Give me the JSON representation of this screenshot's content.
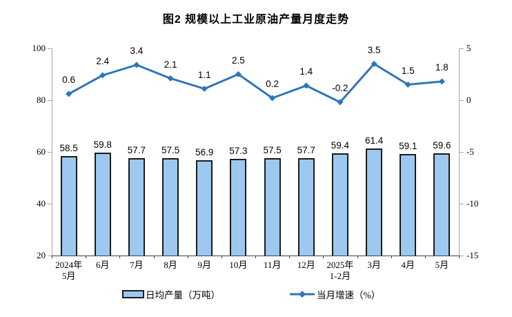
{
  "title": "图2 规模以上工业原油产量月度走势",
  "legend": {
    "bar_label": "日均产量（万吨）",
    "line_label": "当月增速（%）"
  },
  "colors": {
    "bar_fill": "#9DC9F0",
    "bar_border": "#1A1A1A",
    "line": "#2E75B6",
    "axis_vertical": "#A6A6A6",
    "axis_bottom": "#404040",
    "text": "#000000"
  },
  "chart_data": {
    "type": "bar",
    "subtype": "bar-line-combo",
    "title": "图2 规模以上工业原油产量月度走势",
    "categories": [
      "2024年\n5月",
      "6月",
      "7月",
      "8月",
      "9月",
      "10月",
      "11月",
      "12月",
      "2025年\n1-2月",
      "3月",
      "4月",
      "5月"
    ],
    "series": [
      {
        "name": "日均产量（万吨）",
        "type": "bar",
        "axis": "left",
        "values": [
          58.5,
          59.8,
          57.7,
          57.5,
          56.9,
          57.3,
          57.5,
          57.7,
          59.4,
          61.4,
          59.1,
          59.6
        ]
      },
      {
        "name": "当月增速（%）",
        "type": "line",
        "axis": "right",
        "values": [
          0.6,
          2.4,
          3.4,
          2.1,
          1.1,
          2.5,
          0.2,
          1.4,
          -0.2,
          3.5,
          1.5,
          1.8
        ]
      }
    ],
    "left_axis": {
      "min": 20,
      "max": 100,
      "ticks": [
        100,
        80,
        60,
        40,
        20
      ]
    },
    "right_axis": {
      "min": -15,
      "max": 5,
      "ticks": [
        5,
        0,
        -5,
        -10,
        -15
      ]
    },
    "grid": false,
    "legend_position": "bottom",
    "xlabel": "",
    "ylabel_left": "",
    "ylabel_right": ""
  }
}
